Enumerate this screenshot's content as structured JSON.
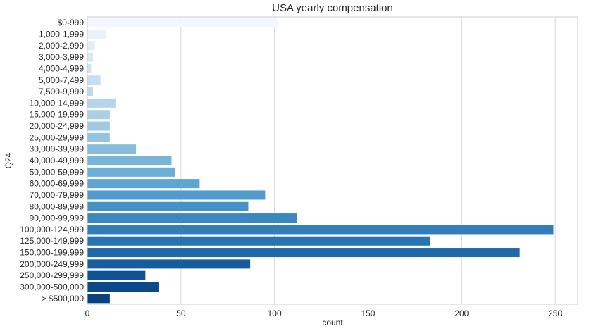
{
  "chart_data": {
    "type": "bar",
    "orientation": "horizontal",
    "title": "USA yearly compensation",
    "xlabel": "count",
    "ylabel": "Q24",
    "xlim": [
      0,
      262
    ],
    "xticks": [
      0,
      50,
      100,
      150,
      200,
      250
    ],
    "grid": true,
    "categories": [
      "$0-999",
      "1,000-1,999",
      "2,000-2,999",
      "3,000-3,999",
      "4,000-4,999",
      "5,000-7,499",
      "7,500-9,999",
      "10,000-14,999",
      "15,000-19,999",
      "20,000-24,999",
      "25,000-29,999",
      "30,000-39,999",
      "40,000-49,999",
      "50,000-59,999",
      "60,000-69,999",
      "70,000-79,999",
      "80,000-89,999",
      "90,000-99,999",
      "100,000-124,999",
      "125,000-149,999",
      "150,000-199,999",
      "200,000-249,999",
      "250,000-299,999",
      "300,000-500,000",
      "> $500,000"
    ],
    "values": [
      102,
      10,
      4,
      3,
      2,
      7,
      3,
      15,
      12,
      12,
      12,
      26,
      45,
      47,
      60,
      95,
      86,
      112,
      249,
      183,
      231,
      87,
      31,
      38,
      12
    ],
    "colors": [
      "#f2f7fd",
      "#e9f2fb",
      "#e2edf8",
      "#d9e8f5",
      "#d1e2f3",
      "#c9ddf0",
      "#c0d8ed",
      "#b7d4ea",
      "#abcfe5",
      "#a0cae1",
      "#94c4df",
      "#86bcdc",
      "#79b5d9",
      "#6baed6",
      "#5ea5d1",
      "#519ccc",
      "#4592c6",
      "#3b88c0",
      "#317eb9",
      "#2874b2",
      "#1f69a9",
      "#175d9e",
      "#0f5396",
      "#0b4a8a",
      "#08417e"
    ]
  }
}
